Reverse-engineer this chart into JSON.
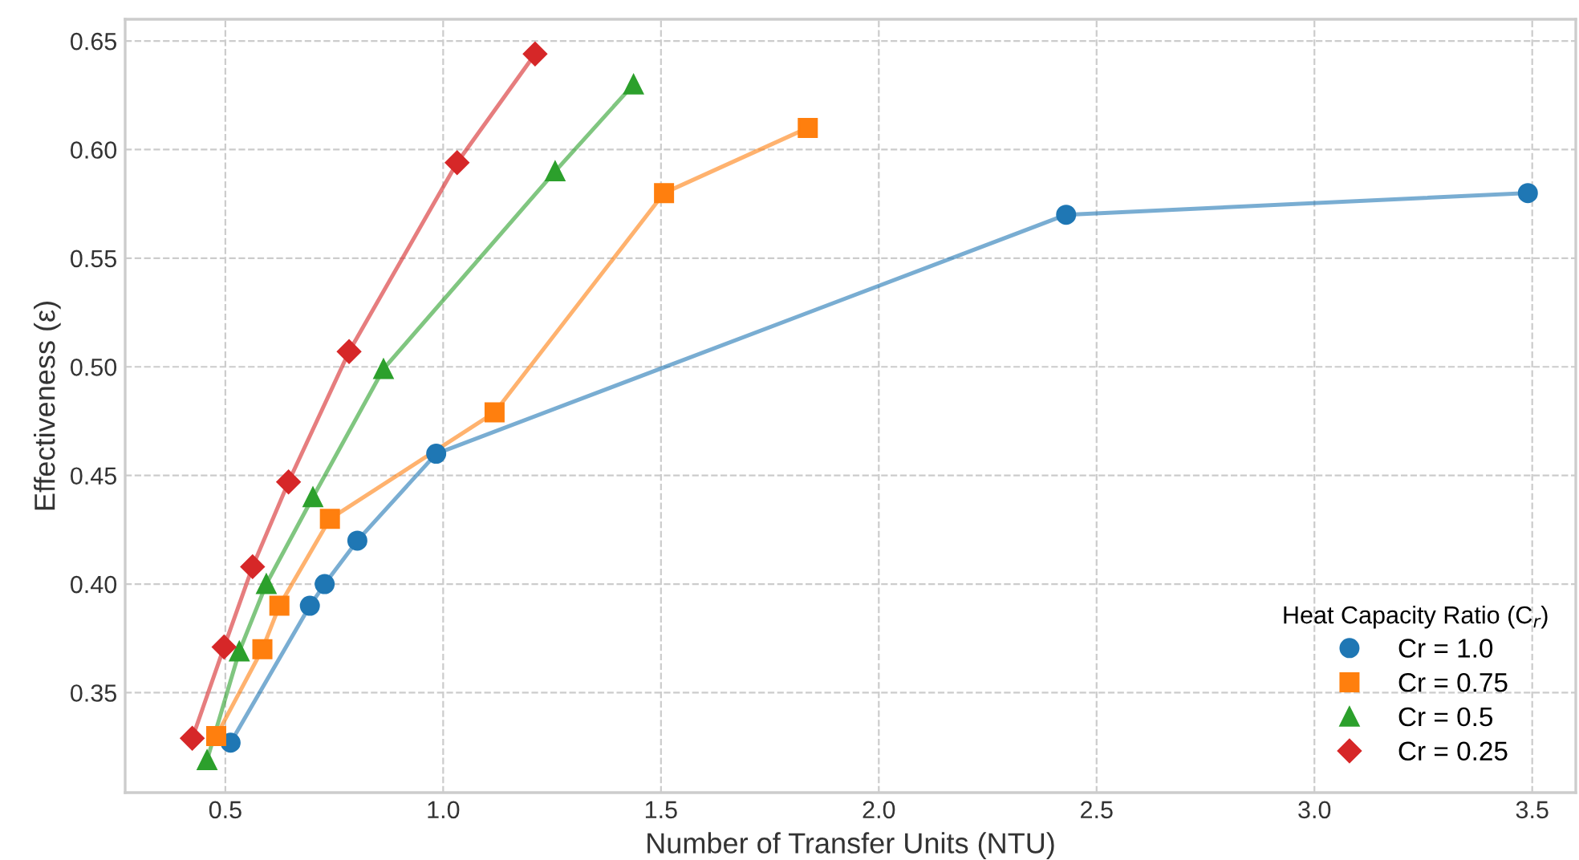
{
  "chart_data": {
    "type": "line",
    "xlabel": "Number of Transfer Units (NTU)",
    "ylabel": "Effectiveness (ε)",
    "legend_title": "Heat Capacity Ratio (C$_{r}$)",
    "legend": "bottom right",
    "grid": true,
    "line_style": "solid",
    "xlim": [
      0.27,
      3.6
    ],
    "xticks": [
      0.5,
      {
        "value": 1,
        "label": "1.0"
      },
      1.5,
      {
        "value": 2,
        "label": "2.0"
      },
      2.5,
      {
        "value": 3,
        "label": "3.0"
      },
      3.5
    ],
    "ylim": [
      0.304,
      0.66
    ],
    "yticks": [
      0.35,
      {
        "value": 0.4,
        "label": "0.40"
      },
      0.45,
      {
        "value": 0.5,
        "label": "0.50"
      },
      0.55,
      {
        "value": 0.6,
        "label": "0.60"
      },
      0.65
    ],
    "series": [
      {
        "name": "Cr = 1.0",
        "color": "#1f77b4",
        "marker": "circle",
        "x": [
          0.512,
          0.694,
          0.728,
          0.803,
          0.984,
          2.43,
          3.49
        ],
        "values": [
          0.327,
          0.39,
          0.4,
          0.42,
          0.46,
          0.57,
          0.58
        ]
      },
      {
        "name": "Cr = 0.75",
        "color": "#ff7f0e",
        "marker": "square",
        "x": [
          0.479,
          0.585,
          0.624,
          0.74,
          1.118,
          1.507,
          1.837
        ],
        "values": [
          0.33,
          0.37,
          0.39,
          0.43,
          0.479,
          0.58,
          0.61
        ]
      },
      {
        "name": "Cr = 0.5",
        "color": "#2ca02c",
        "marker": "triangle",
        "x": [
          0.458,
          0.532,
          0.594,
          0.701,
          0.863,
          1.257,
          1.437
        ],
        "values": [
          0.319,
          0.369,
          0.4,
          0.44,
          0.499,
          0.59,
          0.63
        ]
      },
      {
        "name": "Cr = 0.25",
        "color": "#d62728",
        "marker": "diamond",
        "x": [
          0.424,
          0.497,
          0.5625,
          0.645,
          0.784,
          1.032,
          1.211
        ],
        "values": [
          0.329,
          0.371,
          0.408,
          0.447,
          0.507,
          0.594,
          0.644
        ]
      }
    ]
  }
}
